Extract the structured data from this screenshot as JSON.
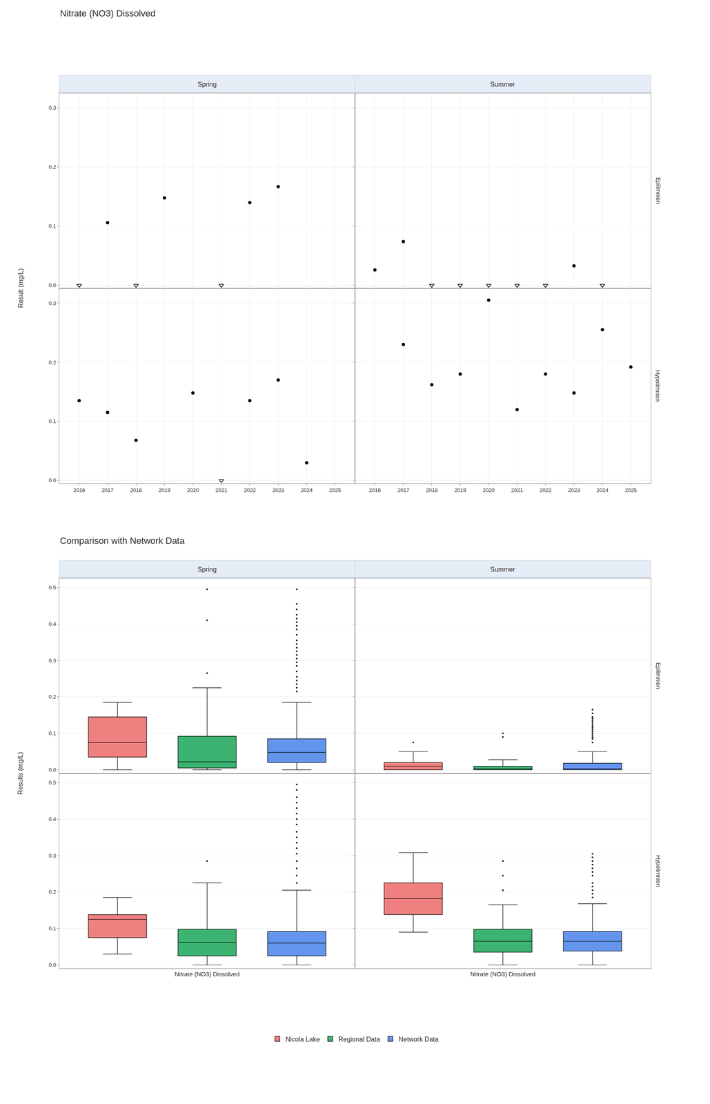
{
  "chart_data": [
    {
      "type": "scatter",
      "title": "Nitrate (NO3) Dissolved",
      "y_label": "Result (mg/L)",
      "columns": [
        "Spring",
        "Summer"
      ],
      "rows": [
        "Epilimnion",
        "Hypolimnion"
      ],
      "xlim": [
        2015.3,
        2025.7
      ],
      "xticks": [
        2016,
        2017,
        2018,
        2019,
        2020,
        2021,
        2022,
        2023,
        2024,
        2025
      ],
      "ylim": [
        -0.005,
        0.325
      ],
      "yticks": [
        {
          "value": 0.0,
          "label": "0.0"
        },
        0.1,
        0.2,
        0.3
      ],
      "grid": true,
      "panels": [
        {
          "column": "Spring",
          "row": "Epilimnion",
          "series": [
            {
              "marker": "circle",
              "color": "#000000",
              "x": [
                2017,
                2019,
                2022,
                2023
              ],
              "values": [
                0.106,
                0.148,
                0.14,
                0.167
              ]
            },
            {
              "marker": "triangle-down-open",
              "color": "#000000",
              "x": [
                2016,
                2018,
                2021
              ],
              "values": [
                0.0,
                0.0,
                0.0
              ]
            }
          ]
        },
        {
          "column": "Summer",
          "row": "Epilimnion",
          "series": [
            {
              "marker": "circle",
              "color": "#000000",
              "x": [
                2016,
                2017,
                2023
              ],
              "values": [
                0.026,
                0.074,
                0.033
              ]
            },
            {
              "marker": "triangle-down-open",
              "color": "#000000",
              "x": [
                2018,
                2019,
                2020,
                2021,
                2022,
                2024
              ],
              "values": [
                0.0,
                0.0,
                0.0,
                0.0,
                0.0,
                0.0
              ]
            }
          ]
        },
        {
          "column": "Spring",
          "row": "Hypolimnion",
          "series": [
            {
              "marker": "circle",
              "color": "#000000",
              "x": [
                2016,
                2017,
                2018,
                2020,
                2022,
                2023,
                2024
              ],
              "values": [
                0.135,
                0.115,
                0.068,
                0.148,
                0.135,
                0.17,
                0.03
              ]
            },
            {
              "marker": "triangle-down-open",
              "color": "#000000",
              "x": [
                2021
              ],
              "values": [
                0.0
              ]
            }
          ]
        },
        {
          "column": "Summer",
          "row": "Hypolimnion",
          "series": [
            {
              "marker": "circle",
              "color": "#000000",
              "x": [
                2017,
                2018,
                2019,
                2020,
                2021,
                2022,
                2023,
                2024,
                2025
              ],
              "values": [
                0.23,
                0.162,
                0.18,
                0.305,
                0.12,
                0.18,
                0.148,
                0.255,
                0.192
              ]
            }
          ]
        }
      ]
    },
    {
      "type": "box",
      "title": "Comparison with Network Data",
      "y_label": "Results (mg/L)",
      "x_label": "Nitrate (NO3) Dissolved",
      "columns": [
        "Spring",
        "Summer"
      ],
      "rows": [
        "Epilimnion",
        "Hypolimnion"
      ],
      "ylim": [
        -0.01,
        0.525
      ],
      "yticks": [
        {
          "value": 0.0,
          "label": "0.0"
        },
        0.1,
        0.2,
        0.3,
        0.4,
        0.5
      ],
      "grid": "y",
      "tick_labels": "y",
      "legend": "bottom",
      "series": [
        {
          "name": "Nicola Lake",
          "color": "#F08080"
        },
        {
          "name": "Regional Data",
          "color": "#3CB371"
        },
        {
          "name": "Network Data",
          "color": "#6495ED"
        }
      ],
      "panels": [
        {
          "column": "Spring",
          "row": "Epilimnion",
          "values": [
            {
              "q1": 0.035,
              "median": 0.075,
              "q3": 0.145,
              "whislo": 0.0,
              "whishi": 0.185,
              "fliers": []
            },
            {
              "q1": 0.005,
              "median": 0.022,
              "q3": 0.092,
              "whislo": 0.0,
              "whishi": 0.225,
              "fliers": [
                0.265,
                0.41,
                0.495
              ]
            },
            {
              "q1": 0.02,
              "median": 0.048,
              "q3": 0.085,
              "whislo": 0.0,
              "whishi": 0.185,
              "fliers": [
                0.215,
                0.225,
                0.235,
                0.245,
                0.255,
                0.27,
                0.285,
                0.295,
                0.305,
                0.315,
                0.325,
                0.335,
                0.345,
                0.355,
                0.37,
                0.385,
                0.395,
                0.405,
                0.415,
                0.425,
                0.44,
                0.455,
                0.495
              ]
            }
          ]
        },
        {
          "column": "Summer",
          "row": "Epilimnion",
          "values": [
            {
              "q1": 0.0,
              "median": 0.01,
              "q3": 0.02,
              "whislo": 0.0,
              "whishi": 0.05,
              "fliers": [
                0.075
              ]
            },
            {
              "q1": 0.0,
              "median": 0.003,
              "q3": 0.01,
              "whislo": 0.0,
              "whishi": 0.028,
              "fliers": [
                0.09,
                0.1
              ]
            },
            {
              "q1": 0.0,
              "median": 0.003,
              "q3": 0.018,
              "whislo": 0.0,
              "whishi": 0.05,
              "fliers": [
                0.075,
                0.085,
                0.09,
                0.095,
                0.1,
                0.105,
                0.11,
                0.115,
                0.12,
                0.125,
                0.13,
                0.135,
                0.14,
                0.145,
                0.155,
                0.165
              ]
            }
          ]
        },
        {
          "column": "Spring",
          "row": "Hypolimnion",
          "values": [
            {
              "q1": 0.075,
              "median": 0.125,
              "q3": 0.138,
              "whislo": 0.03,
              "whishi": 0.185,
              "fliers": []
            },
            {
              "q1": 0.025,
              "median": 0.062,
              "q3": 0.098,
              "whislo": 0.0,
              "whishi": 0.225,
              "fliers": [
                0.285
              ]
            },
            {
              "q1": 0.025,
              "median": 0.06,
              "q3": 0.092,
              "whislo": 0.0,
              "whishi": 0.205,
              "fliers": [
                0.225,
                0.245,
                0.265,
                0.285,
                0.305,
                0.32,
                0.335,
                0.35,
                0.365,
                0.385,
                0.4,
                0.415,
                0.43,
                0.445,
                0.46,
                0.48,
                0.495
              ]
            }
          ]
        },
        {
          "column": "Summer",
          "row": "Hypolimnion",
          "values": [
            {
              "q1": 0.138,
              "median": 0.182,
              "q3": 0.225,
              "whislo": 0.09,
              "whishi": 0.308,
              "fliers": []
            },
            {
              "q1": 0.035,
              "median": 0.065,
              "q3": 0.098,
              "whislo": 0.0,
              "whishi": 0.165,
              "fliers": [
                0.205,
                0.245,
                0.285
              ]
            },
            {
              "q1": 0.038,
              "median": 0.065,
              "q3": 0.092,
              "whislo": 0.0,
              "whishi": 0.168,
              "fliers": [
                0.185,
                0.195,
                0.205,
                0.215,
                0.225,
                0.245,
                0.255,
                0.265,
                0.275,
                0.285,
                0.295,
                0.305
              ]
            }
          ]
        }
      ]
    }
  ]
}
